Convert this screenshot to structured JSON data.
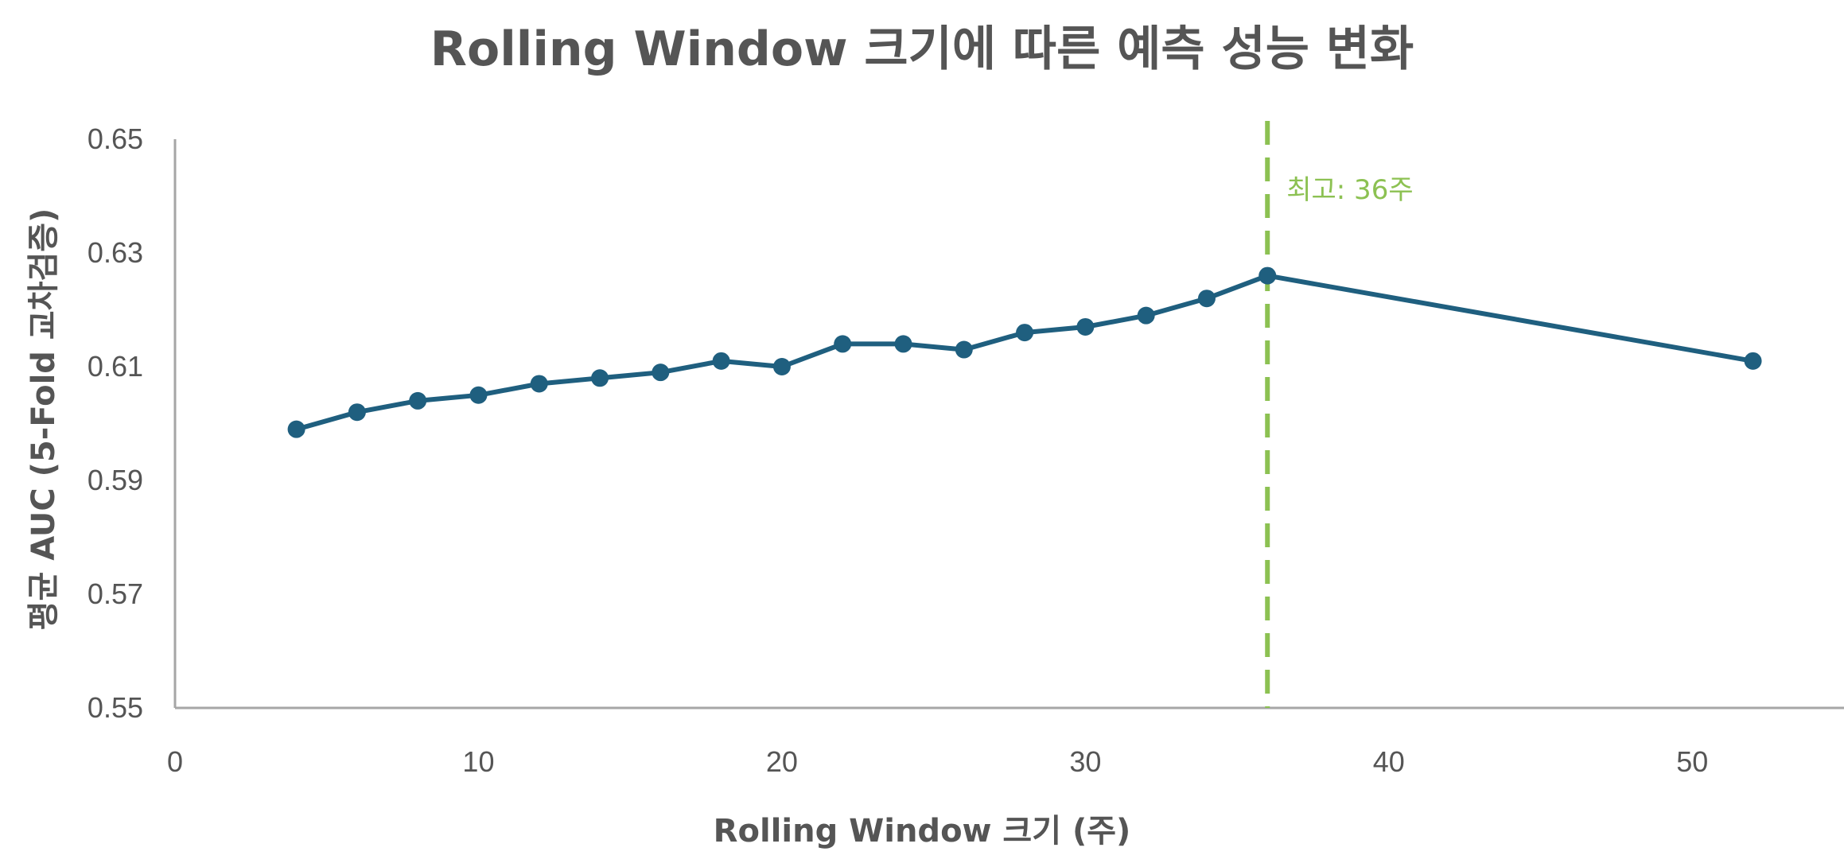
{
  "chart_data": {
    "type": "line",
    "title": "Rolling Window 크기에 따른 예측 성능 변화",
    "xlabel": "Rolling Window 크기 (주)",
    "ylabel": "평균 AUC (5-Fold 교차검증)",
    "xlim": [
      0,
      55
    ],
    "ylim": [
      0.55,
      0.65
    ],
    "x_ticks": [
      "0",
      "10",
      "20",
      "30",
      "40",
      "50"
    ],
    "x_tick_values": [
      0,
      10,
      20,
      30,
      40,
      50
    ],
    "y_ticks": [
      "0.65",
      "0.63",
      "0.61",
      "0.59",
      "0.57",
      "0.55"
    ],
    "y_tick_values": [
      0.65,
      0.63,
      0.61,
      0.59,
      0.57,
      0.55
    ],
    "grid": false,
    "series": [
      {
        "color": "#1f5f7f",
        "points": [
          {
            "x": 4,
            "y": 0.599
          },
          {
            "x": 6,
            "y": 0.602
          },
          {
            "x": 8,
            "y": 0.604
          },
          {
            "x": 10,
            "y": 0.605
          },
          {
            "x": 12,
            "y": 0.607
          },
          {
            "x": 14,
            "y": 0.608
          },
          {
            "x": 16,
            "y": 0.609
          },
          {
            "x": 18,
            "y": 0.611
          },
          {
            "x": 20,
            "y": 0.61
          },
          {
            "x": 22,
            "y": 0.614
          },
          {
            "x": 24,
            "y": 0.614
          },
          {
            "x": 26,
            "y": 0.613
          },
          {
            "x": 28,
            "y": 0.616
          },
          {
            "x": 30,
            "y": 0.617
          },
          {
            "x": 32,
            "y": 0.619
          },
          {
            "x": 34,
            "y": 0.622
          },
          {
            "x": 36,
            "y": 0.626
          },
          {
            "x": 52,
            "y": 0.611
          }
        ]
      }
    ],
    "reference_line": {
      "orientation": "vertical",
      "x": 36,
      "style": "dashed",
      "color": "#8cc152",
      "label": "최고: 36주"
    },
    "colors": {
      "text": "#555555",
      "axis": "#a6a6a6"
    }
  }
}
